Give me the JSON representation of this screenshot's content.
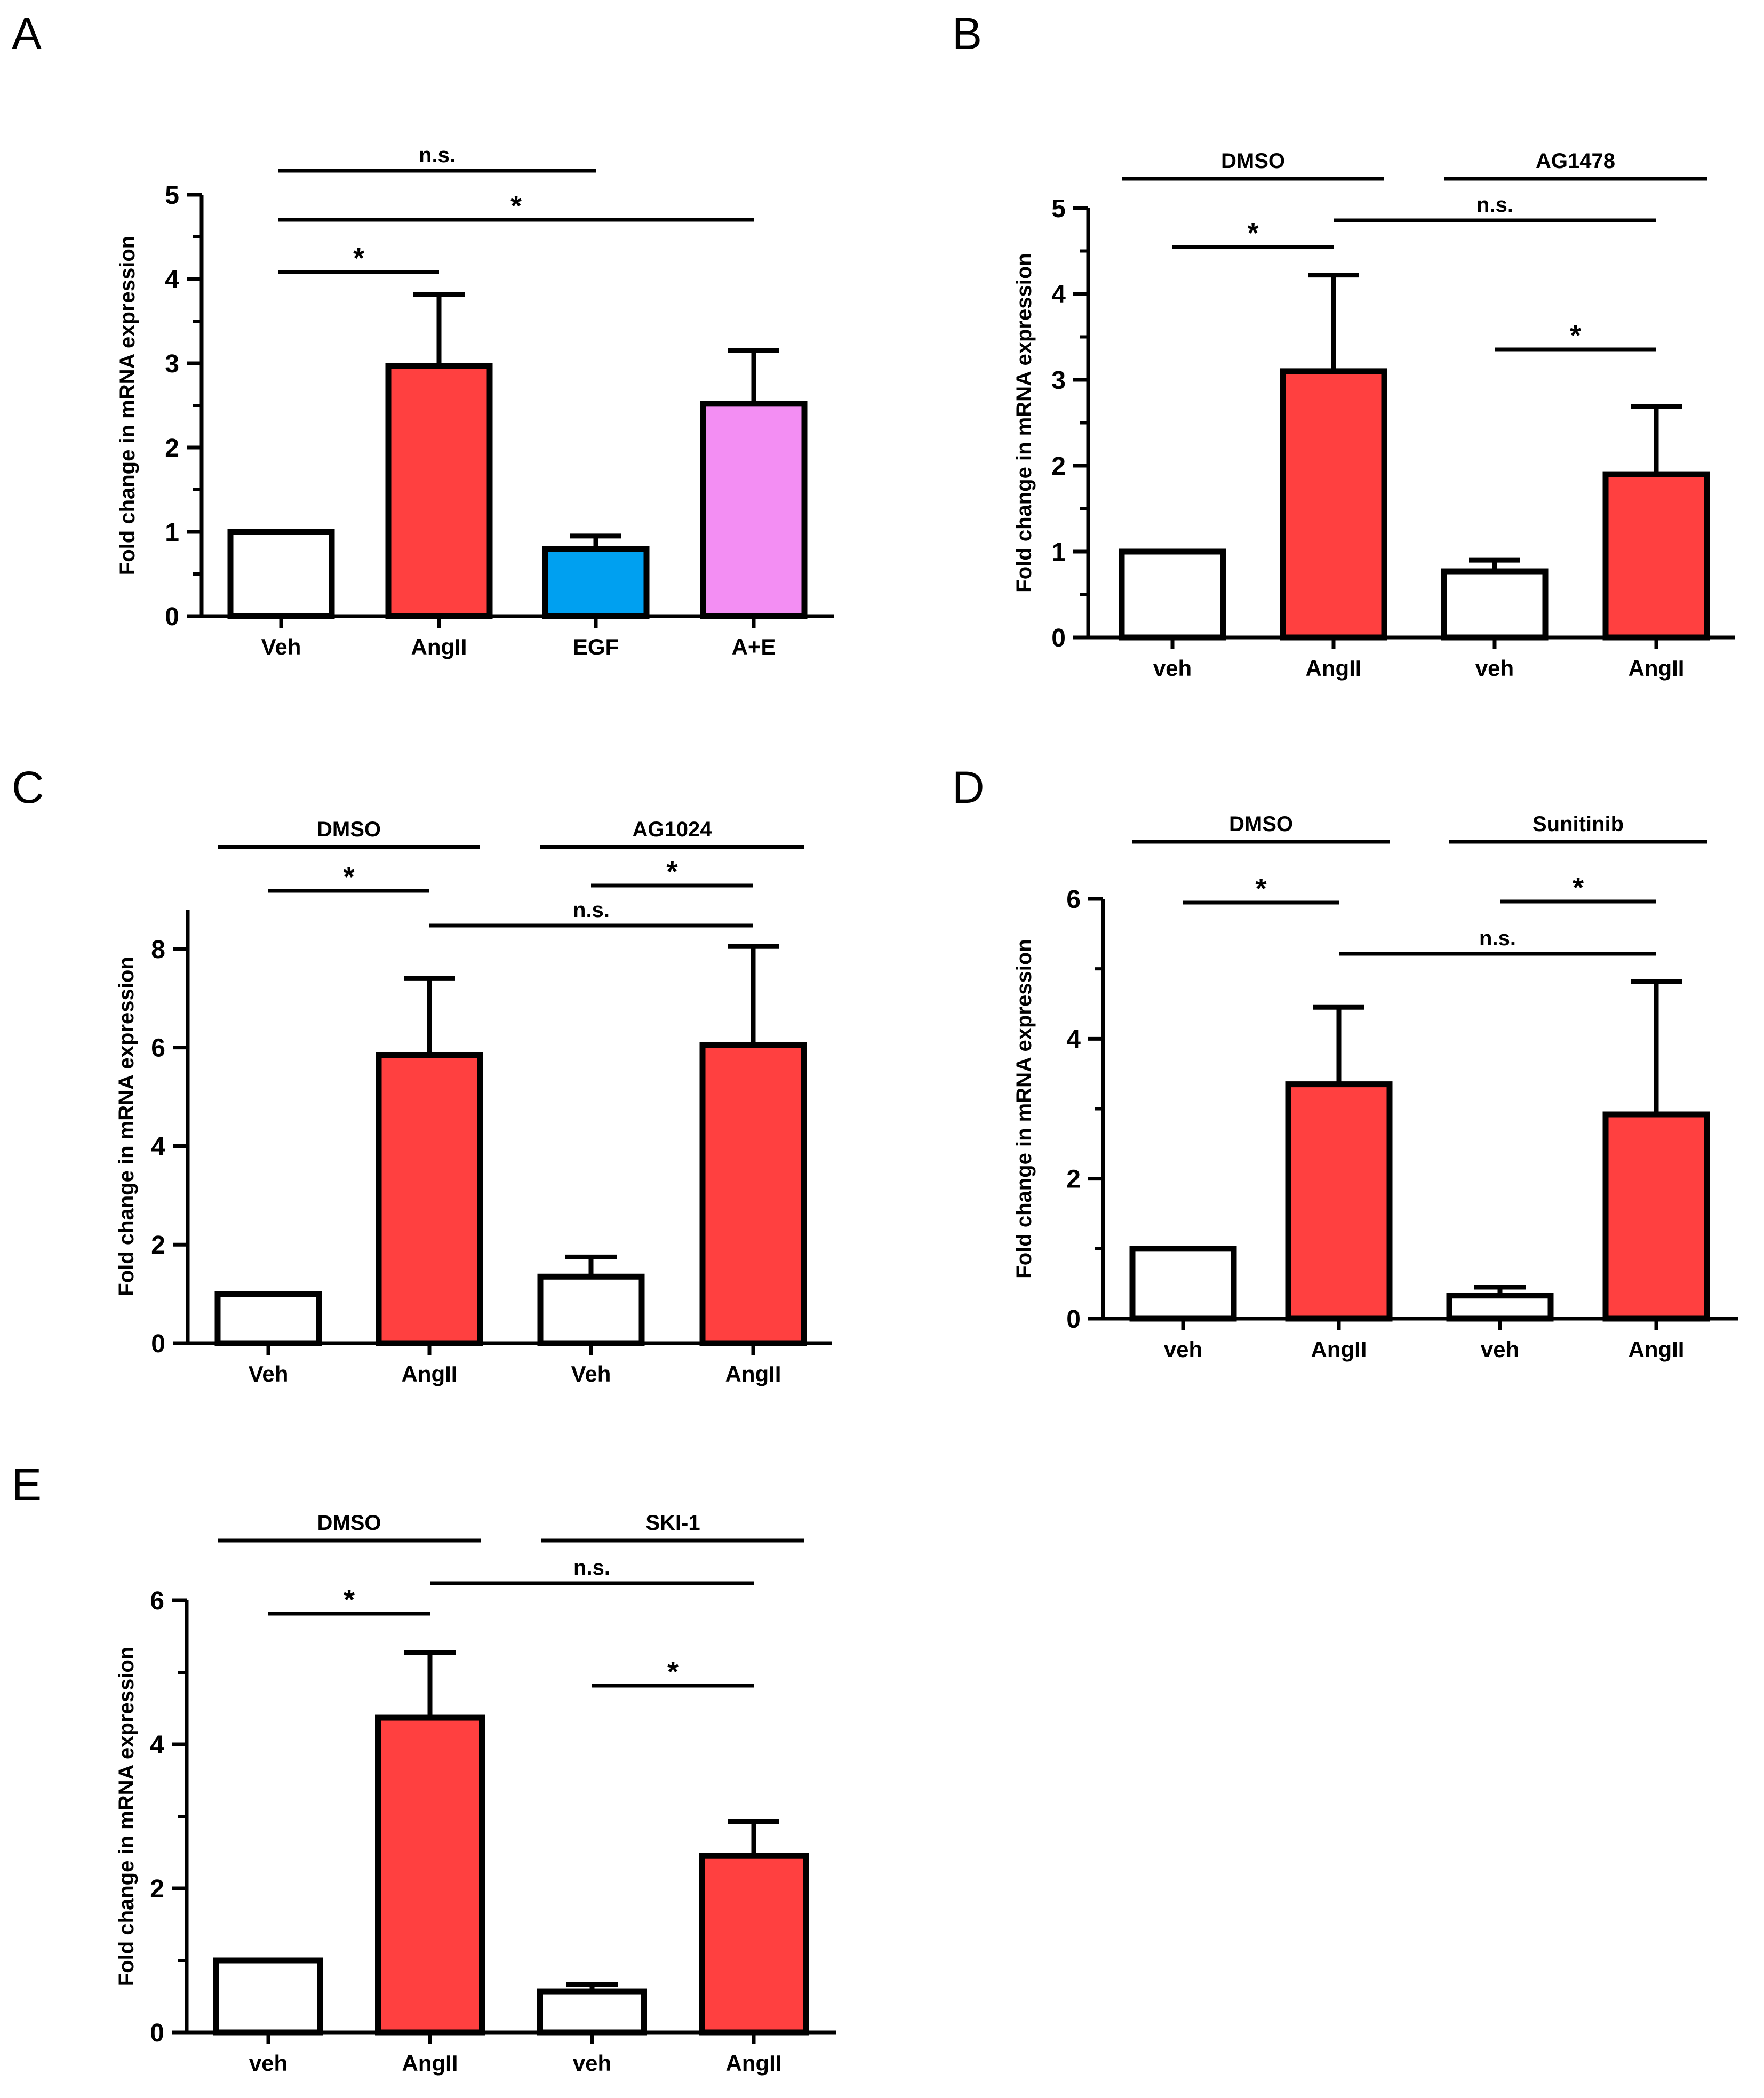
{
  "colors": {
    "white": "#ffffff",
    "red": "#ff4040",
    "blue": "#00a0f0",
    "pink": "#f38ef3",
    "black": "#000000"
  },
  "chart_data": [
    {
      "panel": "A",
      "type": "bar",
      "ylabel": "Fold change in mRNA expression",
      "ylim": [
        0,
        5
      ],
      "yticks": [
        0,
        1,
        2,
        3,
        4,
        5
      ],
      "minor_ticks": true,
      "categories": [
        "Veh",
        "AngII",
        "EGF",
        "A+E"
      ],
      "values": [
        1.0,
        2.97,
        0.8,
        2.52
      ],
      "errors": [
        0,
        0.85,
        0.15,
        0.63
      ],
      "colors": [
        "#ffffff",
        "#ff4040",
        "#00a0f0",
        "#f38ef3"
      ],
      "groups": [],
      "significance": [
        {
          "from": 0,
          "to": 1,
          "label": "*"
        },
        {
          "from": 0,
          "to": 3,
          "label": "*"
        },
        {
          "from": 0,
          "to": 2,
          "label": "n.s."
        }
      ]
    },
    {
      "panel": "B",
      "type": "bar",
      "ylabel": "Fold change in mRNA expression",
      "ylim": [
        0,
        5
      ],
      "yticks": [
        0,
        1,
        2,
        3,
        4,
        5
      ],
      "minor_ticks": true,
      "categories": [
        "veh",
        "AngII",
        "veh",
        "AngII"
      ],
      "values": [
        1.0,
        3.1,
        0.77,
        1.9
      ],
      "errors": [
        0,
        1.12,
        0.13,
        0.79
      ],
      "colors": [
        "#ffffff",
        "#ff4040",
        "#ffffff",
        "#ff4040"
      ],
      "groups": [
        {
          "label": "DMSO",
          "from": 0,
          "to": 1
        },
        {
          "label": "AG1478",
          "from": 2,
          "to": 3
        }
      ],
      "significance": [
        {
          "from": 0,
          "to": 1,
          "label": "*"
        },
        {
          "from": 1,
          "to": 3,
          "label": "n.s."
        },
        {
          "from": 2,
          "to": 3,
          "label": "*"
        }
      ]
    },
    {
      "panel": "C",
      "type": "bar",
      "ylabel": "Fold change in mRNA expression",
      "ylim": [
        0,
        8.8
      ],
      "yticks": [
        0,
        2,
        4,
        6,
        8
      ],
      "minor_ticks": false,
      "categories": [
        "Veh",
        "AngII",
        "Veh",
        "AngII"
      ],
      "values": [
        1.0,
        5.85,
        1.35,
        6.05
      ],
      "errors": [
        0,
        1.55,
        0.4,
        2.0
      ],
      "colors": [
        "#ffffff",
        "#ff4040",
        "#ffffff",
        "#ff4040"
      ],
      "groups": [
        {
          "label": "DMSO",
          "from": 0,
          "to": 1
        },
        {
          "label": "AG1024",
          "from": 2,
          "to": 3
        }
      ],
      "significance": [
        {
          "from": 0,
          "to": 1,
          "label": "*"
        },
        {
          "from": 2,
          "to": 3,
          "label": "*"
        },
        {
          "from": 1,
          "to": 3,
          "label": "n.s."
        }
      ]
    },
    {
      "panel": "D",
      "type": "bar",
      "ylabel": "Fold change in mRNA expression",
      "ylim": [
        0,
        6
      ],
      "yticks": [
        0,
        2,
        4,
        6
      ],
      "minor_ticks": true,
      "categories": [
        "veh",
        "AngII",
        "veh",
        "AngII"
      ],
      "values": [
        1.0,
        3.35,
        0.33,
        2.92
      ],
      "errors": [
        0,
        1.1,
        0.12,
        1.9
      ],
      "colors": [
        "#ffffff",
        "#ff4040",
        "#ffffff",
        "#ff4040"
      ],
      "groups": [
        {
          "label": "DMSO",
          "from": 0,
          "to": 1
        },
        {
          "label": "Sunitinib",
          "from": 2,
          "to": 3
        }
      ],
      "significance": [
        {
          "from": 0,
          "to": 1,
          "label": "*"
        },
        {
          "from": 2,
          "to": 3,
          "label": "*"
        },
        {
          "from": 1,
          "to": 3,
          "label": "n.s."
        }
      ]
    },
    {
      "panel": "E",
      "type": "bar",
      "ylabel": "Fold change in mRNA expression",
      "ylim": [
        0,
        6
      ],
      "yticks": [
        0,
        2,
        4,
        6
      ],
      "minor_ticks": true,
      "categories": [
        "veh",
        "AngII",
        "veh",
        "AngII"
      ],
      "values": [
        1.0,
        4.37,
        0.57,
        2.45
      ],
      "errors": [
        0,
        0.9,
        0.1,
        0.48
      ],
      "colors": [
        "#ffffff",
        "#ff4040",
        "#ffffff",
        "#ff4040"
      ],
      "groups": [
        {
          "label": "DMSO",
          "from": 0,
          "to": 1
        },
        {
          "label": "SKI-1",
          "from": 2,
          "to": 3
        }
      ],
      "significance": [
        {
          "from": 0,
          "to": 1,
          "label": "*"
        },
        {
          "from": 1,
          "to": 3,
          "label": "n.s."
        },
        {
          "from": 2,
          "to": 3,
          "label": "*"
        }
      ]
    }
  ]
}
